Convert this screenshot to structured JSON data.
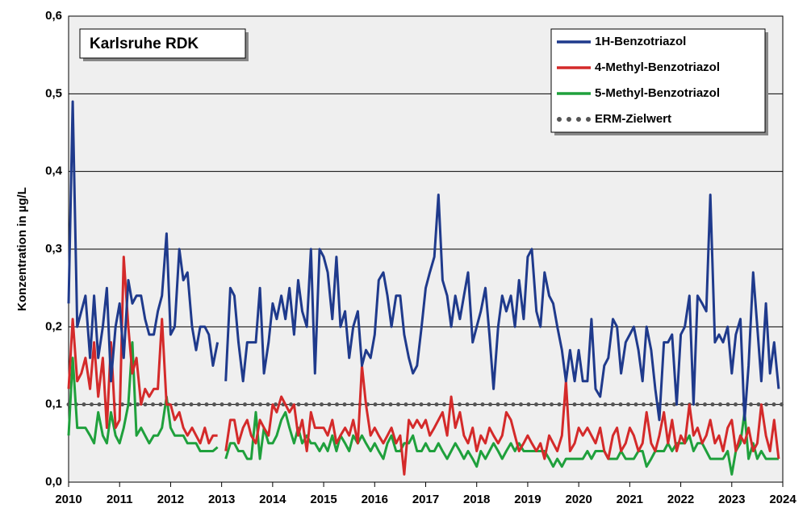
{
  "chart_data": {
    "type": "line",
    "title": "Karlsruhe RDK",
    "y_label": "Konzentration in µg/L",
    "x": [
      2010,
      2010.08,
      2010.17,
      2010.25,
      2010.33,
      2010.42,
      2010.5,
      2010.58,
      2010.67,
      2010.75,
      2010.83,
      2010.92,
      2011,
      2011.08,
      2011.17,
      2011.25,
      2011.33,
      2011.42,
      2011.5,
      2011.58,
      2011.67,
      2011.75,
      2011.83,
      2011.92,
      2012,
      2012.08,
      2012.17,
      2012.25,
      2012.33,
      2012.42,
      2012.5,
      2012.58,
      2012.67,
      2012.75,
      2012.83,
      2012.92,
      2013,
      2013.08,
      2013.17,
      2013.25,
      2013.33,
      2013.42,
      2013.5,
      2013.58,
      2013.67,
      2013.75,
      2013.83,
      2013.92,
      2014,
      2014.08,
      2014.17,
      2014.25,
      2014.33,
      2014.42,
      2014.5,
      2014.58,
      2014.67,
      2014.75,
      2014.83,
      2014.92,
      2015,
      2015.08,
      2015.17,
      2015.25,
      2015.33,
      2015.42,
      2015.5,
      2015.58,
      2015.67,
      2015.75,
      2015.83,
      2015.92,
      2016,
      2016.08,
      2016.17,
      2016.25,
      2016.33,
      2016.42,
      2016.5,
      2016.58,
      2016.67,
      2016.75,
      2016.83,
      2016.92,
      2017,
      2017.08,
      2017.17,
      2017.25,
      2017.33,
      2017.42,
      2017.5,
      2017.58,
      2017.67,
      2017.75,
      2017.83,
      2017.92,
      2018,
      2018.08,
      2018.17,
      2018.25,
      2018.33,
      2018.42,
      2018.5,
      2018.58,
      2018.67,
      2018.75,
      2018.83,
      2018.92,
      2019,
      2019.08,
      2019.17,
      2019.25,
      2019.33,
      2019.42,
      2019.5,
      2019.58,
      2019.67,
      2019.75,
      2019.83,
      2019.92,
      2020,
      2020.08,
      2020.17,
      2020.25,
      2020.33,
      2020.42,
      2020.5,
      2020.58,
      2020.67,
      2020.75,
      2020.83,
      2020.92,
      2021,
      2021.08,
      2021.17,
      2021.25,
      2021.33,
      2021.42,
      2021.5,
      2021.58,
      2021.67,
      2021.75,
      2021.83,
      2021.92,
      2022,
      2022.08,
      2022.17,
      2022.25,
      2022.33,
      2022.42,
      2022.5,
      2022.58,
      2022.67,
      2022.75,
      2022.83,
      2022.92,
      2023,
      2023.08,
      2023.17,
      2023.25,
      2023.33,
      2023.42,
      2023.5,
      2023.58,
      2023.67,
      2023.75,
      2023.83,
      2023.92
    ],
    "series": [
      {
        "name": "1H-Benzotriazol",
        "color": "#1f3a8c",
        "values": [
          0.23,
          0.49,
          0.2,
          0.22,
          0.24,
          0.16,
          0.24,
          0.16,
          0.2,
          0.25,
          0.13,
          0.2,
          0.23,
          0.16,
          0.26,
          0.23,
          0.24,
          0.24,
          0.21,
          0.19,
          0.19,
          0.22,
          0.24,
          0.32,
          0.19,
          0.2,
          0.3,
          0.26,
          0.27,
          0.2,
          0.17,
          0.2,
          0.2,
          0.19,
          0.15,
          0.18,
          null,
          0.13,
          0.25,
          0.24,
          0.18,
          0.13,
          0.18,
          0.18,
          0.18,
          0.25,
          0.14,
          0.18,
          0.23,
          0.21,
          0.24,
          0.21,
          0.25,
          0.19,
          0.26,
          0.22,
          0.2,
          0.3,
          0.14,
          0.3,
          0.29,
          0.27,
          0.21,
          0.29,
          0.2,
          0.22,
          0.16,
          0.2,
          0.22,
          0.15,
          0.17,
          0.16,
          0.19,
          0.26,
          0.27,
          0.24,
          0.2,
          0.24,
          0.24,
          0.19,
          0.16,
          0.14,
          0.15,
          0.2,
          0.25,
          0.27,
          0.29,
          0.37,
          0.26,
          0.24,
          0.2,
          0.24,
          0.21,
          0.24,
          0.27,
          0.18,
          0.2,
          0.22,
          0.25,
          0.19,
          0.12,
          0.2,
          0.24,
          0.22,
          0.24,
          0.2,
          0.26,
          0.21,
          0.29,
          0.3,
          0.22,
          0.2,
          0.27,
          0.24,
          0.23,
          0.2,
          0.17,
          0.13,
          0.17,
          0.13,
          0.17,
          0.13,
          0.13,
          0.21,
          0.12,
          0.11,
          0.15,
          0.16,
          0.21,
          0.2,
          0.14,
          0.18,
          0.19,
          0.2,
          0.17,
          0.13,
          0.2,
          0.17,
          0.12,
          0.08,
          0.18,
          0.18,
          0.19,
          0.1,
          0.19,
          0.2,
          0.24,
          0.1,
          0.24,
          0.23,
          0.22,
          0.37,
          0.18,
          0.19,
          0.18,
          0.2,
          0.14,
          0.19,
          0.21,
          0.08,
          0.15,
          0.27,
          0.2,
          0.13,
          0.23,
          0.14,
          0.18,
          0.12
        ]
      },
      {
        "name": "4-Methyl-Benzotriazol",
        "color": "#d42a2a",
        "values": [
          0.12,
          0.21,
          0.13,
          0.14,
          0.16,
          0.12,
          0.18,
          0.11,
          0.16,
          0.07,
          0.18,
          0.07,
          0.08,
          0.29,
          0.2,
          0.14,
          0.16,
          0.1,
          0.12,
          0.11,
          0.12,
          0.12,
          0.21,
          0.1,
          0.1,
          0.08,
          0.09,
          0.07,
          0.06,
          0.07,
          0.06,
          0.05,
          0.07,
          0.05,
          0.06,
          0.06,
          null,
          0.04,
          0.08,
          0.08,
          0.05,
          0.07,
          0.08,
          0.06,
          0.05,
          0.08,
          0.07,
          0.06,
          0.1,
          0.09,
          0.11,
          0.1,
          0.09,
          0.1,
          0.06,
          0.08,
          0.04,
          0.09,
          0.07,
          0.07,
          0.07,
          0.06,
          0.08,
          0.05,
          0.06,
          0.07,
          0.06,
          0.08,
          0.05,
          0.15,
          0.1,
          0.06,
          0.07,
          0.06,
          0.05,
          0.06,
          0.07,
          0.05,
          0.06,
          0.01,
          0.08,
          0.07,
          0.08,
          0.07,
          0.08,
          0.06,
          0.07,
          0.08,
          0.09,
          0.06,
          0.11,
          0.07,
          0.09,
          0.06,
          0.05,
          0.07,
          0.04,
          0.06,
          0.05,
          0.07,
          0.06,
          0.05,
          0.06,
          0.09,
          0.08,
          0.06,
          0.04,
          0.05,
          0.06,
          0.05,
          0.04,
          0.05,
          0.03,
          0.06,
          0.05,
          0.04,
          0.06,
          0.13,
          0.04,
          0.05,
          0.07,
          0.06,
          0.07,
          0.06,
          0.05,
          0.07,
          0.04,
          0.03,
          0.06,
          0.07,
          0.04,
          0.05,
          0.07,
          0.06,
          0.04,
          0.05,
          0.09,
          0.05,
          0.04,
          0.06,
          0.09,
          0.05,
          0.08,
          0.04,
          0.06,
          0.05,
          0.1,
          0.06,
          0.07,
          0.05,
          0.06,
          0.08,
          0.05,
          0.06,
          0.04,
          0.07,
          0.08,
          0.04,
          0.06,
          0.05,
          0.07,
          0.04,
          0.05,
          0.1,
          0.06,
          0.04,
          0.08,
          0.03
        ]
      },
      {
        "name": "5-Methyl-Benzotriazol",
        "color": "#1fa03c",
        "values": [
          0.06,
          0.16,
          0.07,
          0.07,
          0.07,
          0.06,
          0.05,
          0.09,
          0.06,
          0.05,
          0.09,
          0.06,
          0.05,
          0.07,
          0.1,
          0.18,
          0.06,
          0.07,
          0.06,
          0.05,
          0.06,
          0.06,
          0.07,
          0.11,
          0.07,
          0.06,
          0.06,
          0.06,
          0.05,
          0.05,
          0.05,
          0.04,
          0.04,
          0.04,
          0.04,
          0.045,
          null,
          0.03,
          0.05,
          0.05,
          0.04,
          0.04,
          0.03,
          0.03,
          0.09,
          0.03,
          0.07,
          0.05,
          0.05,
          0.06,
          0.08,
          0.09,
          0.07,
          0.05,
          0.07,
          0.05,
          0.06,
          0.05,
          0.05,
          0.04,
          0.05,
          0.04,
          0.06,
          0.04,
          0.06,
          0.05,
          0.04,
          0.06,
          0.05,
          0.06,
          0.05,
          0.04,
          0.05,
          0.04,
          0.03,
          0.05,
          0.06,
          0.04,
          0.04,
          0.05,
          0.05,
          0.06,
          0.04,
          0.04,
          0.05,
          0.04,
          0.04,
          0.05,
          0.04,
          0.03,
          0.04,
          0.05,
          0.04,
          0.03,
          0.04,
          0.03,
          0.02,
          0.04,
          0.03,
          0.04,
          0.05,
          0.04,
          0.03,
          0.04,
          0.05,
          0.04,
          0.05,
          0.04,
          0.04,
          0.04,
          0.04,
          0.04,
          0.04,
          0.03,
          0.02,
          0.03,
          0.02,
          0.03,
          0.03,
          0.03,
          0.03,
          0.03,
          0.04,
          0.03,
          0.04,
          0.04,
          0.04,
          0.03,
          0.03,
          0.03,
          0.04,
          0.03,
          0.03,
          0.03,
          0.04,
          0.04,
          0.02,
          0.03,
          0.04,
          0.04,
          0.04,
          0.05,
          0.04,
          0.05,
          0.05,
          0.05,
          0.06,
          0.04,
          0.05,
          0.05,
          0.04,
          0.03,
          0.03,
          0.03,
          0.03,
          0.04,
          0.01,
          0.04,
          0.05,
          0.09,
          0.03,
          0.05,
          0.03,
          0.04,
          0.03,
          0.03,
          0.03,
          0.03
        ]
      }
    ],
    "reference": {
      "name": "ERM-Zielwert",
      "value": 0.1,
      "color": "#555555"
    },
    "xlim": [
      2010,
      2024
    ],
    "xticks": [
      2010,
      2011,
      2012,
      2013,
      2014,
      2015,
      2016,
      2017,
      2018,
      2019,
      2020,
      2021,
      2022,
      2023,
      2024
    ],
    "ylim": [
      0,
      0.6
    ],
    "yticks": [
      {
        "value": 0,
        "label": "0,0"
      },
      {
        "value": 0.1,
        "label": "0,1"
      },
      {
        "value": 0.2,
        "label": "0,2"
      },
      {
        "value": 0.3,
        "label": "0,3"
      },
      {
        "value": 0.4,
        "label": "0,4"
      },
      {
        "value": 0.5,
        "label": "0,5"
      },
      {
        "value": 0.6,
        "label": "0,6"
      }
    ],
    "grid": true,
    "legend": "top-right"
  }
}
